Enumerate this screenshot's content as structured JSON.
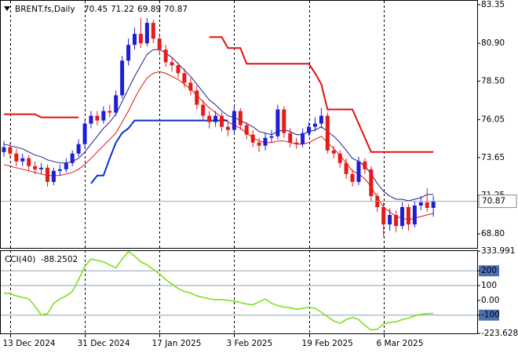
{
  "chart_data": [
    {
      "type": "candlestick",
      "title": "BRENT.fs,Daily",
      "categories": [
        null,
        "13 Dec 2024",
        null,
        null,
        null,
        null,
        null,
        null,
        null,
        null,
        null,
        null,
        null,
        "31 Dec 2024",
        null,
        null,
        null,
        null,
        null,
        null,
        null,
        null,
        null,
        null,
        null,
        "17 Jan 2025",
        null,
        null,
        null,
        null,
        null,
        null,
        null,
        null,
        null,
        null,
        null,
        "3 Feb 2025",
        null,
        null,
        null,
        null,
        null,
        null,
        null,
        null,
        null,
        null,
        null,
        "19 Feb 2025",
        null,
        null,
        null,
        null,
        null,
        null,
        null,
        null,
        null,
        null,
        null,
        "6 Mar 2025",
        null,
        null,
        null,
        null,
        null,
        null,
        null,
        null
      ],
      "open": [
        74.0,
        74.3,
        73.9,
        73.4,
        73.6,
        73.1,
        72.9,
        73.0,
        72.1,
        72.8,
        72.9,
        73.3,
        73.9,
        74.5,
        75.8,
        76.3,
        76.0,
        76.6,
        76.5,
        77.6,
        79.8,
        80.8,
        81.5,
        80.9,
        82.2,
        81.2,
        80.5,
        79.7,
        79.5,
        79.0,
        78.4,
        77.9,
        77.0,
        76.3,
        75.9,
        76.3,
        75.6,
        75.4,
        76.6,
        75.7,
        75.1,
        74.6,
        74.4,
        74.9,
        75.0,
        76.7,
        75.2,
        74.6,
        74.5,
        75.2,
        75.6,
        75.8,
        76.3,
        74.1,
        73.9,
        73.3,
        72.6,
        72.1,
        73.4,
        72.9,
        71.2,
        70.5,
        69.4,
        70.0,
        69.3,
        70.5,
        69.4,
        70.6,
        70.8,
        70.45
      ],
      "high": [
        74.7,
        74.6,
        74.2,
        73.9,
        73.8,
        73.4,
        73.3,
        73.2,
        73.0,
        73.2,
        73.6,
        74.1,
        74.8,
        76.0,
        76.6,
        76.6,
        76.9,
        77.0,
        77.9,
        80.1,
        81.2,
        81.9,
        82.5,
        82.5,
        82.4,
        81.5,
        80.8,
        80.0,
        79.7,
        79.3,
        78.7,
        78.2,
        77.3,
        76.6,
        76.6,
        76.5,
        75.9,
        76.9,
        76.8,
        75.9,
        75.4,
        74.9,
        75.2,
        75.4,
        77.0,
        76.9,
        75.5,
        74.9,
        75.5,
        75.9,
        76.2,
        76.8,
        76.5,
        74.4,
        74.1,
        73.6,
        72.9,
        73.7,
        73.6,
        73.1,
        71.4,
        70.8,
        70.4,
        70.3,
        70.8,
        70.7,
        70.9,
        71.2,
        71.7,
        71.22
      ],
      "low": [
        73.7,
        73.6,
        73.1,
        73.1,
        72.8,
        72.6,
        72.6,
        71.8,
        71.9,
        72.5,
        72.7,
        73.1,
        73.7,
        74.3,
        75.5,
        75.7,
        75.8,
        76.2,
        76.3,
        77.4,
        79.5,
        80.5,
        80.6,
        80.7,
        80.9,
        80.2,
        79.4,
        79.1,
        78.7,
        78.1,
        77.6,
        76.7,
        76.0,
        75.5,
        75.6,
        75.3,
        75.0,
        75.2,
        75.4,
        74.8,
        74.3,
        74.0,
        74.1,
        74.6,
        74.8,
        74.9,
        74.3,
        74.2,
        74.3,
        75.0,
        75.3,
        75.5,
        73.9,
        73.6,
        73.0,
        72.3,
        71.8,
        71.9,
        72.6,
        70.9,
        70.2,
        68.6,
        69.0,
        68.9,
        69.1,
        69.0,
        69.2,
        70.3,
        70.2,
        69.89
      ],
      "close": [
        74.3,
        73.9,
        73.4,
        73.6,
        73.1,
        72.9,
        73.0,
        72.1,
        72.8,
        72.9,
        73.3,
        73.9,
        74.5,
        75.8,
        76.3,
        76.0,
        76.6,
        76.5,
        77.6,
        79.8,
        80.8,
        81.5,
        80.9,
        82.2,
        81.2,
        80.5,
        79.7,
        79.5,
        79.0,
        78.4,
        77.9,
        77.0,
        76.3,
        75.9,
        76.3,
        75.6,
        75.4,
        76.6,
        75.7,
        75.1,
        74.6,
        74.4,
        74.9,
        75.0,
        76.7,
        75.2,
        74.6,
        74.5,
        75.2,
        75.6,
        75.8,
        76.3,
        74.1,
        73.9,
        73.3,
        72.6,
        72.1,
        73.4,
        72.9,
        71.2,
        70.5,
        69.4,
        70.0,
        69.3,
        70.5,
        69.4,
        70.6,
        70.8,
        70.45,
        70.87
      ],
      "up_color": "#1e1ed2",
      "down_color": "#e41b1b",
      "lines": [
        {
          "color": "#1c1c8c",
          "width": 1,
          "values": [
            74.5,
            74.4,
            74.3,
            74.2,
            74.0,
            73.8,
            73.7,
            73.5,
            73.4,
            73.3,
            73.3,
            73.4,
            73.6,
            74.0,
            74.5,
            75.0,
            75.5,
            75.9,
            76.4,
            77.2,
            78.0,
            78.8,
            79.5,
            80.2,
            80.5,
            80.5,
            80.3,
            80.0,
            79.6,
            79.2,
            78.8,
            78.3,
            77.8,
            77.3,
            77.0,
            76.6,
            76.3,
            76.2,
            76.0,
            75.8,
            75.6,
            75.3,
            75.2,
            75.1,
            75.3,
            75.4,
            75.3,
            75.1,
            75.1,
            75.3,
            75.4,
            75.6,
            75.3,
            75.0,
            74.6,
            74.1,
            73.6,
            73.4,
            73.1,
            72.6,
            72.0,
            71.5,
            71.2,
            71.0,
            71.0,
            70.9,
            71.0,
            71.1,
            71.3,
            71.3
          ]
        },
        {
          "color": "#e01010",
          "width": 1,
          "values": [
            73.2,
            73.1,
            73.0,
            72.9,
            72.8,
            72.7,
            72.6,
            72.5,
            72.5,
            72.5,
            72.6,
            72.7,
            72.9,
            73.2,
            73.6,
            74.0,
            74.4,
            74.8,
            75.2,
            75.9,
            76.6,
            77.4,
            78.1,
            78.7,
            79.0,
            79.1,
            79.0,
            78.8,
            78.6,
            78.3,
            78.0,
            77.6,
            77.2,
            76.8,
            76.5,
            76.2,
            75.9,
            75.7,
            75.5,
            75.2,
            74.9,
            74.7,
            74.6,
            74.6,
            74.7,
            74.7,
            74.6,
            74.5,
            74.5,
            74.6,
            74.8,
            75.0,
            74.6,
            74.2,
            73.8,
            73.3,
            72.8,
            72.6,
            72.3,
            71.8,
            71.1,
            70.5,
            70.2,
            69.9,
            69.8,
            69.7,
            69.8,
            69.9,
            70.0,
            70.1
          ]
        },
        {
          "color": "#e01010",
          "width": 2,
          "values": [
            76.4,
            76.4,
            76.4,
            76.4,
            76.4,
            76.4,
            76.2,
            76.2,
            76.2,
            76.2,
            76.2,
            76.2,
            76.2,
            null,
            null,
            null,
            null,
            null,
            null,
            null,
            null,
            null,
            null,
            null,
            null,
            null,
            null,
            null,
            null,
            null,
            null,
            null,
            null,
            81.3,
            81.3,
            81.3,
            80.6,
            80.6,
            80.6,
            79.6,
            79.6,
            79.6,
            79.6,
            79.6,
            79.6,
            79.6,
            79.6,
            79.6,
            79.6,
            79.6,
            79.0,
            78.3,
            76.7,
            76.7,
            76.7,
            76.7,
            76.7,
            75.8,
            74.9,
            74.0,
            74.0,
            74.0,
            74.0,
            74.0,
            74.0,
            74.0,
            74.0,
            74.0,
            74.0,
            74.0
          ]
        },
        {
          "color": "#0a2fd0",
          "width": 2,
          "values": [
            null,
            null,
            null,
            null,
            null,
            null,
            null,
            null,
            null,
            null,
            null,
            null,
            null,
            null,
            72.0,
            72.5,
            72.5,
            73.6,
            74.6,
            75.2,
            75.5,
            76.0,
            76.0,
            76.0,
            76.0,
            76.0,
            76.0,
            76.0,
            76.0,
            76.0,
            76.0,
            76.0,
            76.0,
            76.0,
            76.0,
            76.0,
            76.0,
            null,
            null,
            null,
            null,
            null,
            null,
            null,
            null,
            null,
            null,
            null,
            null,
            null,
            null,
            null,
            null,
            null,
            null,
            null,
            null,
            null,
            null,
            null,
            null,
            null,
            null,
            null,
            null,
            null,
            null,
            null,
            null,
            null
          ]
        }
      ],
      "ylim": [
        67.91,
        83.6
      ],
      "yticks": [
        83.35,
        {
          "value": 80.9,
          "label": "80.90"
        },
        {
          "value": 78.5,
          "label": "78.50"
        },
        76.05,
        73.65,
        71.25,
        {
          "value": 68.8,
          "label": "68.80"
        }
      ]
    },
    {
      "type": "line",
      "title": "CCI(40)",
      "series": [
        {
          "color": "#7ee01e",
          "values": [
            50,
            45,
            30,
            20,
            10,
            -40,
            -100,
            -90,
            -20,
            10,
            30,
            60,
            140,
            230,
            280,
            270,
            260,
            240,
            220,
            280,
            330,
            300,
            260,
            240,
            210,
            180,
            140,
            110,
            80,
            60,
            50,
            30,
            20,
            10,
            5,
            5,
            0,
            -5,
            -15,
            -25,
            -30,
            -10,
            10,
            -20,
            -35,
            -45,
            -50,
            -60,
            -55,
            -45,
            -55,
            -80,
            -110,
            -140,
            -155,
            -130,
            -115,
            -130,
            -170,
            -200,
            -195,
            -160,
            -150,
            -145,
            -130,
            -120,
            -105,
            -95,
            -90,
            -88.2502
          ]
        }
      ],
      "ylim": [
        -223.628,
        333.991
      ],
      "yticks": [
        333.991,
        200,
        100,
        {
          "value": 0,
          "label": "0.00"
        },
        -100,
        -223.628
      ],
      "levels": [
        200,
        100,
        -100
      ],
      "highlighted_levels": [
        200,
        -100
      ]
    }
  ]
}
